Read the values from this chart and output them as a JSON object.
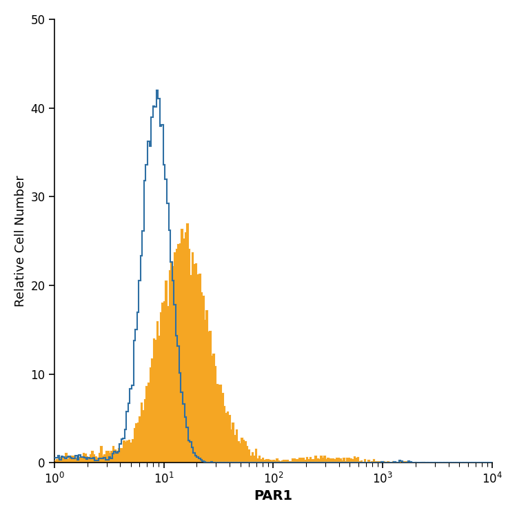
{
  "title": "",
  "xlabel": "PAR1",
  "ylabel": "Relative Cell Number",
  "xlim_log": [
    1,
    10000
  ],
  "ylim": [
    0,
    50
  ],
  "yticks": [
    0,
    10,
    20,
    30,
    40,
    50
  ],
  "blue_color": "#2E6FA3",
  "orange_color": "#F5A623",
  "background_color": "#FFFFFF",
  "xlabel_fontsize": 14,
  "ylabel_fontsize": 13,
  "tick_fontsize": 12,
  "blue_linewidth": 1.5,
  "orange_linewidth": 0.8,
  "seed": 42,
  "isotype_peak_log10": 0.93,
  "isotype_peak_y": 42,
  "isotype_sigma": 0.13,
  "antibody_peak_log10": 1.18,
  "antibody_peak_y": 27,
  "antibody_sigma": 0.22
}
